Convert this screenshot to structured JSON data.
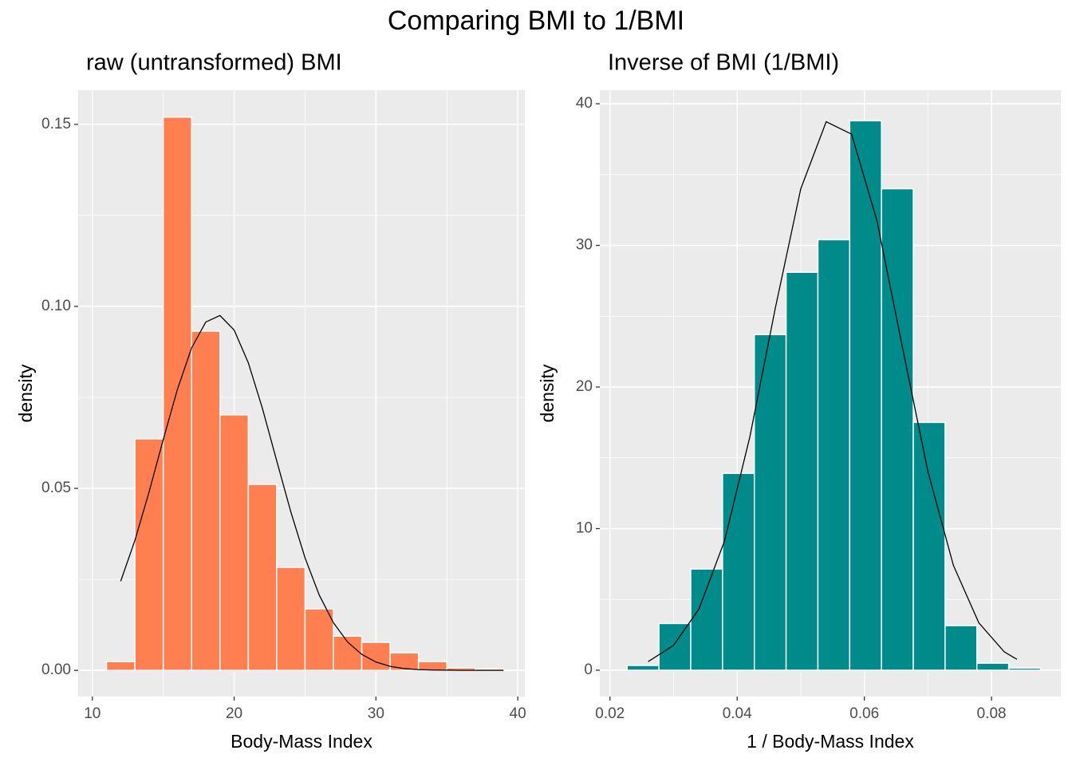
{
  "title": "Comparing BMI to 1/BMI",
  "chart_data": [
    {
      "type": "histogram",
      "title": "raw (untransformed) BMI",
      "xlabel": "Body-Mass Index",
      "ylabel": "density",
      "bins": [
        11,
        13,
        15,
        17,
        19,
        21,
        23,
        25,
        27,
        29,
        31,
        33,
        35,
        37,
        39
      ],
      "values": [
        0.0024,
        0.0636,
        0.152,
        0.0932,
        0.0702,
        0.0511,
        0.0283,
        0.0169,
        0.0094,
        0.0077,
        0.0048,
        0.0024,
        0.0007,
        0.0004
      ],
      "color": "#ff7f50",
      "line": {
        "color": "#000000",
        "x": [
          12,
          13,
          14,
          15,
          16,
          17,
          18,
          19,
          20,
          21,
          22,
          23,
          24,
          25,
          26,
          27,
          28,
          29,
          30,
          31,
          32,
          33,
          34,
          36,
          39
        ],
        "values": [
          0.0245,
          0.0357,
          0.049,
          0.0634,
          0.0772,
          0.0886,
          0.0957,
          0.0975,
          0.0935,
          0.0845,
          0.0719,
          0.0576,
          0.0435,
          0.0309,
          0.0207,
          0.0131,
          0.0078,
          0.0044,
          0.0023,
          0.0011,
          0.0005,
          0.0002,
          0.0001,
          0,
          0
        ]
      },
      "xlim": [
        9,
        40.5
      ],
      "ylim": [
        -0.0072,
        0.1594
      ],
      "xticks": [
        10,
        20,
        30,
        40
      ],
      "yticks": [
        {
          "value": 0,
          "label": "0.00"
        },
        0.05,
        {
          "value": 0.1,
          "label": "0.10"
        },
        0.15
      ],
      "grid": true
    },
    {
      "type": "histogram",
      "title": "Inverse of BMI (1/BMI)",
      "xlabel": "1 / Body-Mass Index",
      "ylabel": "density",
      "bins": [
        0.0227,
        0.0277,
        0.0327,
        0.0377,
        0.0427,
        0.0477,
        0.0527,
        0.0577,
        0.0627,
        0.0677,
        0.0727,
        0.0777,
        0.0827,
        0.0877
      ],
      "values": [
        0.34,
        3.3,
        7.15,
        13.9,
        23.7,
        28.1,
        30.4,
        38.8,
        34.0,
        17.5,
        3.15,
        0.5,
        0.15
      ],
      "color": "#008b8b",
      "line": {
        "color": "#000000",
        "x": [
          0.026,
          0.03,
          0.034,
          0.038,
          0.042,
          0.046,
          0.05,
          0.054,
          0.058,
          0.062,
          0.066,
          0.07,
          0.074,
          0.078,
          0.082,
          0.084
        ],
        "values": [
          0.61,
          1.76,
          4.33,
          9.12,
          16.49,
          25.57,
          33.99,
          38.73,
          37.85,
          31.71,
          22.78,
          14.03,
          7.41,
          3.35,
          1.3,
          0.77
        ]
      },
      "xlim": [
        0.0184,
        0.0909
      ],
      "ylim": [
        -1.86,
        40.96
      ],
      "xticks": [
        0.02,
        0.04,
        0.06,
        0.08
      ],
      "yticks": [
        0,
        10,
        20,
        30,
        40
      ],
      "grid": true
    }
  ]
}
